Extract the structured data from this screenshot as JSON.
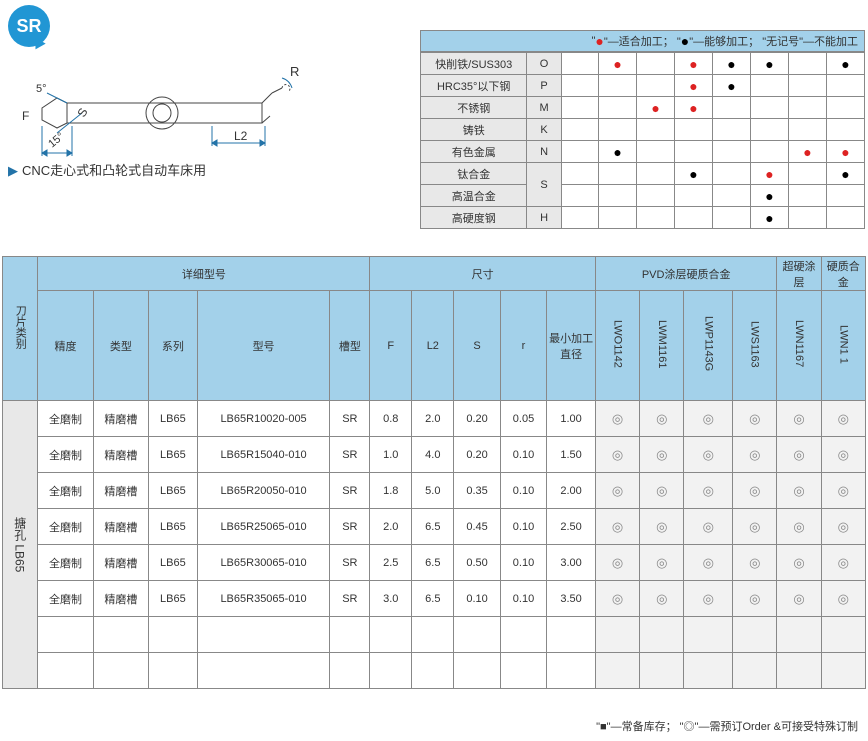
{
  "badge": {
    "label": "SR"
  },
  "diagram": {
    "labels": {
      "R": "R",
      "L2": "L2",
      "F": "F",
      "S": "S",
      "ang5": "5°",
      "ang15": "15°"
    }
  },
  "caption": {
    "marker": "▶",
    "text": "CNC走心式和凸轮式自动车床用"
  },
  "material_legend": {
    "red_label": "\"●\"—适合加工；",
    "black_label": "\"●\"—能够加工；",
    "none_label": "\"无记号\"—不能加工"
  },
  "material_table": {
    "rows": [
      {
        "name": "快削铁/SUS303",
        "code": "O",
        "cells": [
          "",
          "r",
          "",
          "r",
          "b",
          "b",
          "",
          "b"
        ]
      },
      {
        "name": "HRC35°以下钢",
        "code": "P",
        "cells": [
          "",
          "",
          "",
          "r",
          "b",
          "",
          "",
          ""
        ]
      },
      {
        "name": "不锈钢",
        "code": "M",
        "cells": [
          "",
          "",
          "r",
          "r",
          "",
          "",
          "",
          ""
        ]
      },
      {
        "name": "铸铁",
        "code": "K",
        "cells": [
          "",
          "",
          "",
          "",
          "",
          "",
          "",
          ""
        ]
      },
      {
        "name": "有色金属",
        "code": "N",
        "cells": [
          "",
          "b",
          "",
          "",
          "",
          "",
          "r",
          "r"
        ]
      },
      {
        "name": "钛合金",
        "code": "S",
        "rowspan": 2,
        "cells": [
          "",
          "",
          "",
          "b",
          "",
          "r",
          "",
          "b"
        ]
      },
      {
        "name": "高温合金",
        "code": "",
        "cells": [
          "",
          "",
          "",
          "",
          "",
          "b",
          "",
          ""
        ]
      },
      {
        "name": "高硬度钢",
        "code": "H",
        "cells": [
          "",
          "",
          "",
          "",
          "",
          "b",
          "",
          ""
        ]
      }
    ]
  },
  "spec_header": {
    "cat_side": "刀片类别",
    "group_model": "详细型号",
    "group_dim": "尺寸",
    "group_pvd": "PVD涂层硬质合金",
    "group_super": "超硬涂层",
    "group_hard": "硬质合金",
    "cols": {
      "precision": "精度",
      "type": "类型",
      "series": "系列",
      "model": "型号",
      "groove": "槽型",
      "F": "F",
      "L2": "L2",
      "S": "S",
      "r": "r",
      "min_dia": "最小加工直径",
      "g1": "LWO1142",
      "g2": "LWM1161",
      "g3": "LWP1143G",
      "g4": "LWS1163",
      "g5": "LWN1167",
      "g6": "LWN1 1"
    }
  },
  "spec_side_label": "搪孔 LB65",
  "spec_rows": [
    {
      "precision": "全磨制",
      "type": "精磨槽",
      "series": "LB65",
      "model": "LB65R10020-005",
      "groove": "SR",
      "F": "0.8",
      "L2": "2.0",
      "S": "0.20",
      "r": "0.05",
      "mind": "1.00",
      "g": [
        "◎",
        "◎",
        "◎",
        "◎",
        "◎",
        "◎"
      ]
    },
    {
      "precision": "全磨制",
      "type": "精磨槽",
      "series": "LB65",
      "model": "LB65R15040-010",
      "groove": "SR",
      "F": "1.0",
      "L2": "4.0",
      "S": "0.20",
      "r": "0.10",
      "mind": "1.50",
      "g": [
        "◎",
        "◎",
        "◎",
        "◎",
        "◎",
        "◎"
      ]
    },
    {
      "precision": "全磨制",
      "type": "精磨槽",
      "series": "LB65",
      "model": "LB65R20050-010",
      "groove": "SR",
      "F": "1.8",
      "L2": "5.0",
      "S": "0.35",
      "r": "0.10",
      "mind": "2.00",
      "g": [
        "◎",
        "◎",
        "◎",
        "◎",
        "◎",
        "◎"
      ]
    },
    {
      "precision": "全磨制",
      "type": "精磨槽",
      "series": "LB65",
      "model": "LB65R25065-010",
      "groove": "SR",
      "F": "2.0",
      "L2": "6.5",
      "S": "0.45",
      "r": "0.10",
      "mind": "2.50",
      "g": [
        "◎",
        "◎",
        "◎",
        "◎",
        "◎",
        "◎"
      ]
    },
    {
      "precision": "全磨制",
      "type": "精磨槽",
      "series": "LB65",
      "model": "LB65R30065-010",
      "groove": "SR",
      "F": "2.5",
      "L2": "6.5",
      "S": "0.50",
      "r": "0.10",
      "mind": "3.00",
      "g": [
        "◎",
        "◎",
        "◎",
        "◎",
        "◎",
        "◎"
      ]
    },
    {
      "precision": "全磨制",
      "type": "精磨槽",
      "series": "LB65",
      "model": "LB65R35065-010",
      "groove": "SR",
      "F": "3.0",
      "L2": "6.5",
      "S": "0.10",
      "r": "0.10",
      "mind": "3.50",
      "g": [
        "◎",
        "◎",
        "◎",
        "◎",
        "◎",
        "◎"
      ]
    }
  ],
  "footnote": {
    "sq_label": "\"■\"—常备库存；",
    "ring_label": "\"◎\"—需预订Order",
    "custom": "  &可接受特殊订制"
  }
}
